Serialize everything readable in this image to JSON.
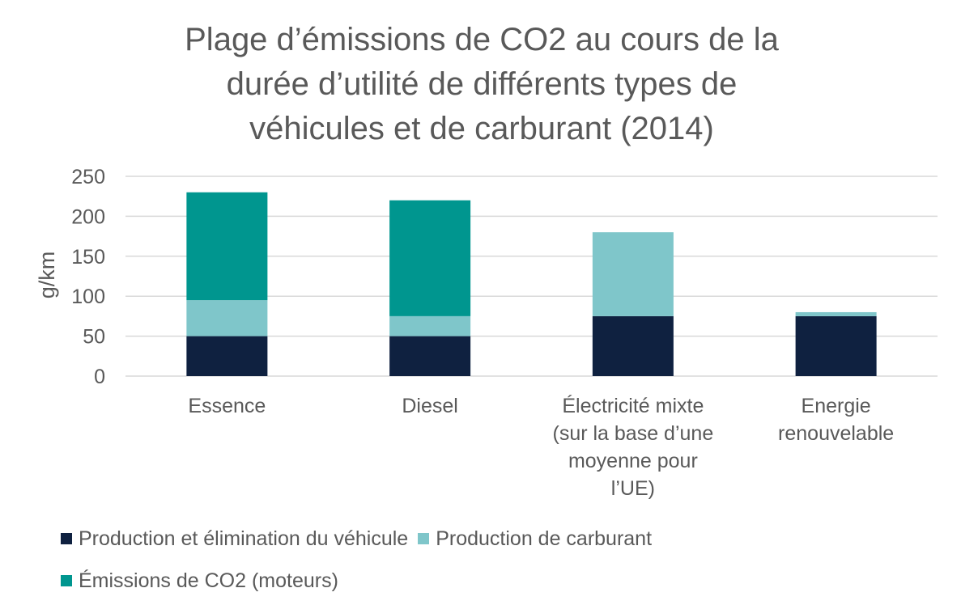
{
  "chart_data": {
    "type": "bar",
    "stacked": true,
    "title_lines": [
      "Plage d’émissions de CO2 au cours de la",
      "durée d’utilité de différents types de",
      "véhicules et de carburant (2014)"
    ],
    "ylabel": "g/km",
    "ylim": [
      0,
      250
    ],
    "yticks": [
      0,
      50,
      100,
      150,
      200,
      250
    ],
    "grid": true,
    "legend_position": "bottom",
    "categories": [
      [
        "Essence"
      ],
      [
        "Diesel"
      ],
      [
        "Électricité mixte",
        "(sur la base d’une",
        "moyenne pour",
        "l’UE)"
      ],
      [
        "Energie",
        "renouvelable"
      ]
    ],
    "series": [
      {
        "name": "Production et élimination du véhicule",
        "color": "#0f2140",
        "values": [
          50,
          50,
          75,
          75
        ]
      },
      {
        "name": "Production de carburant",
        "color": "#7fc6ca",
        "values": [
          45,
          25,
          105,
          5
        ]
      },
      {
        "name": "Émissions de CO2 (moteurs)",
        "color": "#00968f",
        "values": [
          135,
          145,
          0,
          0
        ]
      }
    ]
  }
}
